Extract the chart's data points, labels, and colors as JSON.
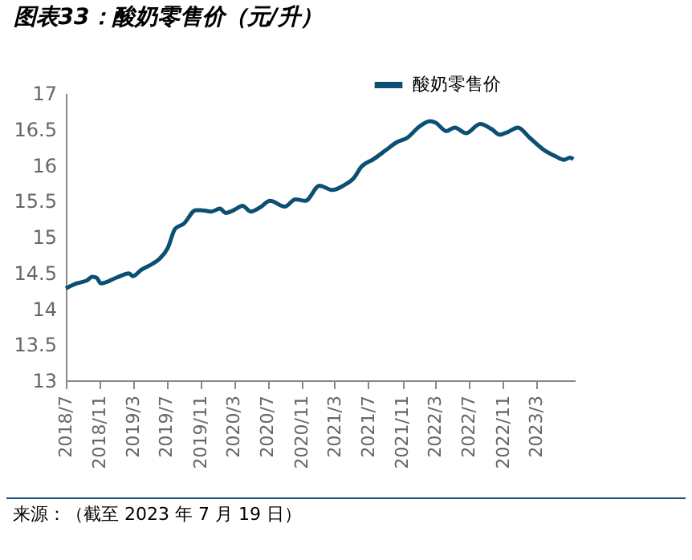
{
  "chart_data": {
    "type": "line",
    "title": "图表33：酸奶零售价（元/升）",
    "x": [
      "2018-07-01",
      "2018-08-10",
      "2018-09-15",
      "2018-10-05",
      "2018-10-20",
      "2018-11-05",
      "2019-01-01",
      "2019-02-15",
      "2019-02-28",
      "2019-04-01",
      "2019-05-10",
      "2019-06-05",
      "2019-07-05",
      "2019-08-01",
      "2019-09-01",
      "2019-10-15",
      "2019-11-01",
      "2019-12-10",
      "2020-01-10",
      "2020-02-01",
      "2020-03-01",
      "2020-04-01",
      "2020-05-01",
      "2020-06-05",
      "2020-07-10",
      "2020-09-01",
      "2020-10-10",
      "2020-11-15",
      "2021-01-05",
      "2021-02-20",
      "2021-04-01",
      "2021-05-10",
      "2021-06-05",
      "2021-07-20",
      "2021-09-01",
      "2021-10-10",
      "2021-11-20",
      "2022-01-01",
      "2022-02-10",
      "2022-03-01",
      "2022-04-10",
      "2022-05-10",
      "2022-06-20",
      "2022-08-10",
      "2022-09-20",
      "2022-10-20",
      "2022-11-20",
      "2022-12-25",
      "2023-02-05",
      "2023-04-01",
      "2023-05-10",
      "2023-06-10",
      "2023-07-01",
      "2023-07-14"
    ],
    "series": [
      {
        "name": "酸奶零售价",
        "color": "#0b4f72",
        "values": [
          14.28,
          14.35,
          14.39,
          14.44,
          14.43,
          14.35,
          14.43,
          14.49,
          14.45,
          14.54,
          14.62,
          14.69,
          14.84,
          15.11,
          15.18,
          15.37,
          15.37,
          15.35,
          15.39,
          15.33,
          15.37,
          15.43,
          15.35,
          15.41,
          15.5,
          15.42,
          15.52,
          15.5,
          15.71,
          15.65,
          15.71,
          15.82,
          15.97,
          16.08,
          16.2,
          16.31,
          16.38,
          16.53,
          16.61,
          16.59,
          16.47,
          16.52,
          16.44,
          16.57,
          16.5,
          16.42,
          16.46,
          16.52,
          16.38,
          16.2,
          16.12,
          16.07,
          16.1,
          16.08
        ]
      }
    ],
    "xlim": [
      "2018-07-01",
      "2023-07-19"
    ],
    "xticks": [
      {
        "value": "2018-07-01",
        "label": "2018/7"
      },
      {
        "value": "2018-11-01",
        "label": "2018/11"
      },
      {
        "value": "2019-03-01",
        "label": "2019/3"
      },
      {
        "value": "2019-07-01",
        "label": "2019/7"
      },
      {
        "value": "2019-11-01",
        "label": "2019/11"
      },
      {
        "value": "2020-03-01",
        "label": "2020/3"
      },
      {
        "value": "2020-07-01",
        "label": "2020/7"
      },
      {
        "value": "2020-11-01",
        "label": "2020/11"
      },
      {
        "value": "2021-03-01",
        "label": "2021/3"
      },
      {
        "value": "2021-07-01",
        "label": "2021/7"
      },
      {
        "value": "2021-11-01",
        "label": "2021/11"
      },
      {
        "value": "2022-03-01",
        "label": "2022/3"
      },
      {
        "value": "2022-07-01",
        "label": "2022/7"
      },
      {
        "value": "2022-11-01",
        "label": "2022/11"
      },
      {
        "value": "2023-03-01",
        "label": "2023/3"
      }
    ],
    "ylim": [
      13,
      17
    ],
    "yticks": [
      13,
      13.5,
      14,
      14.5,
      15,
      15.5,
      16,
      16.5,
      17
    ],
    "grid": false,
    "legend": "top right",
    "annotations": [
      "来源：（截至 2023 年 7 月 19 日）"
    ]
  }
}
